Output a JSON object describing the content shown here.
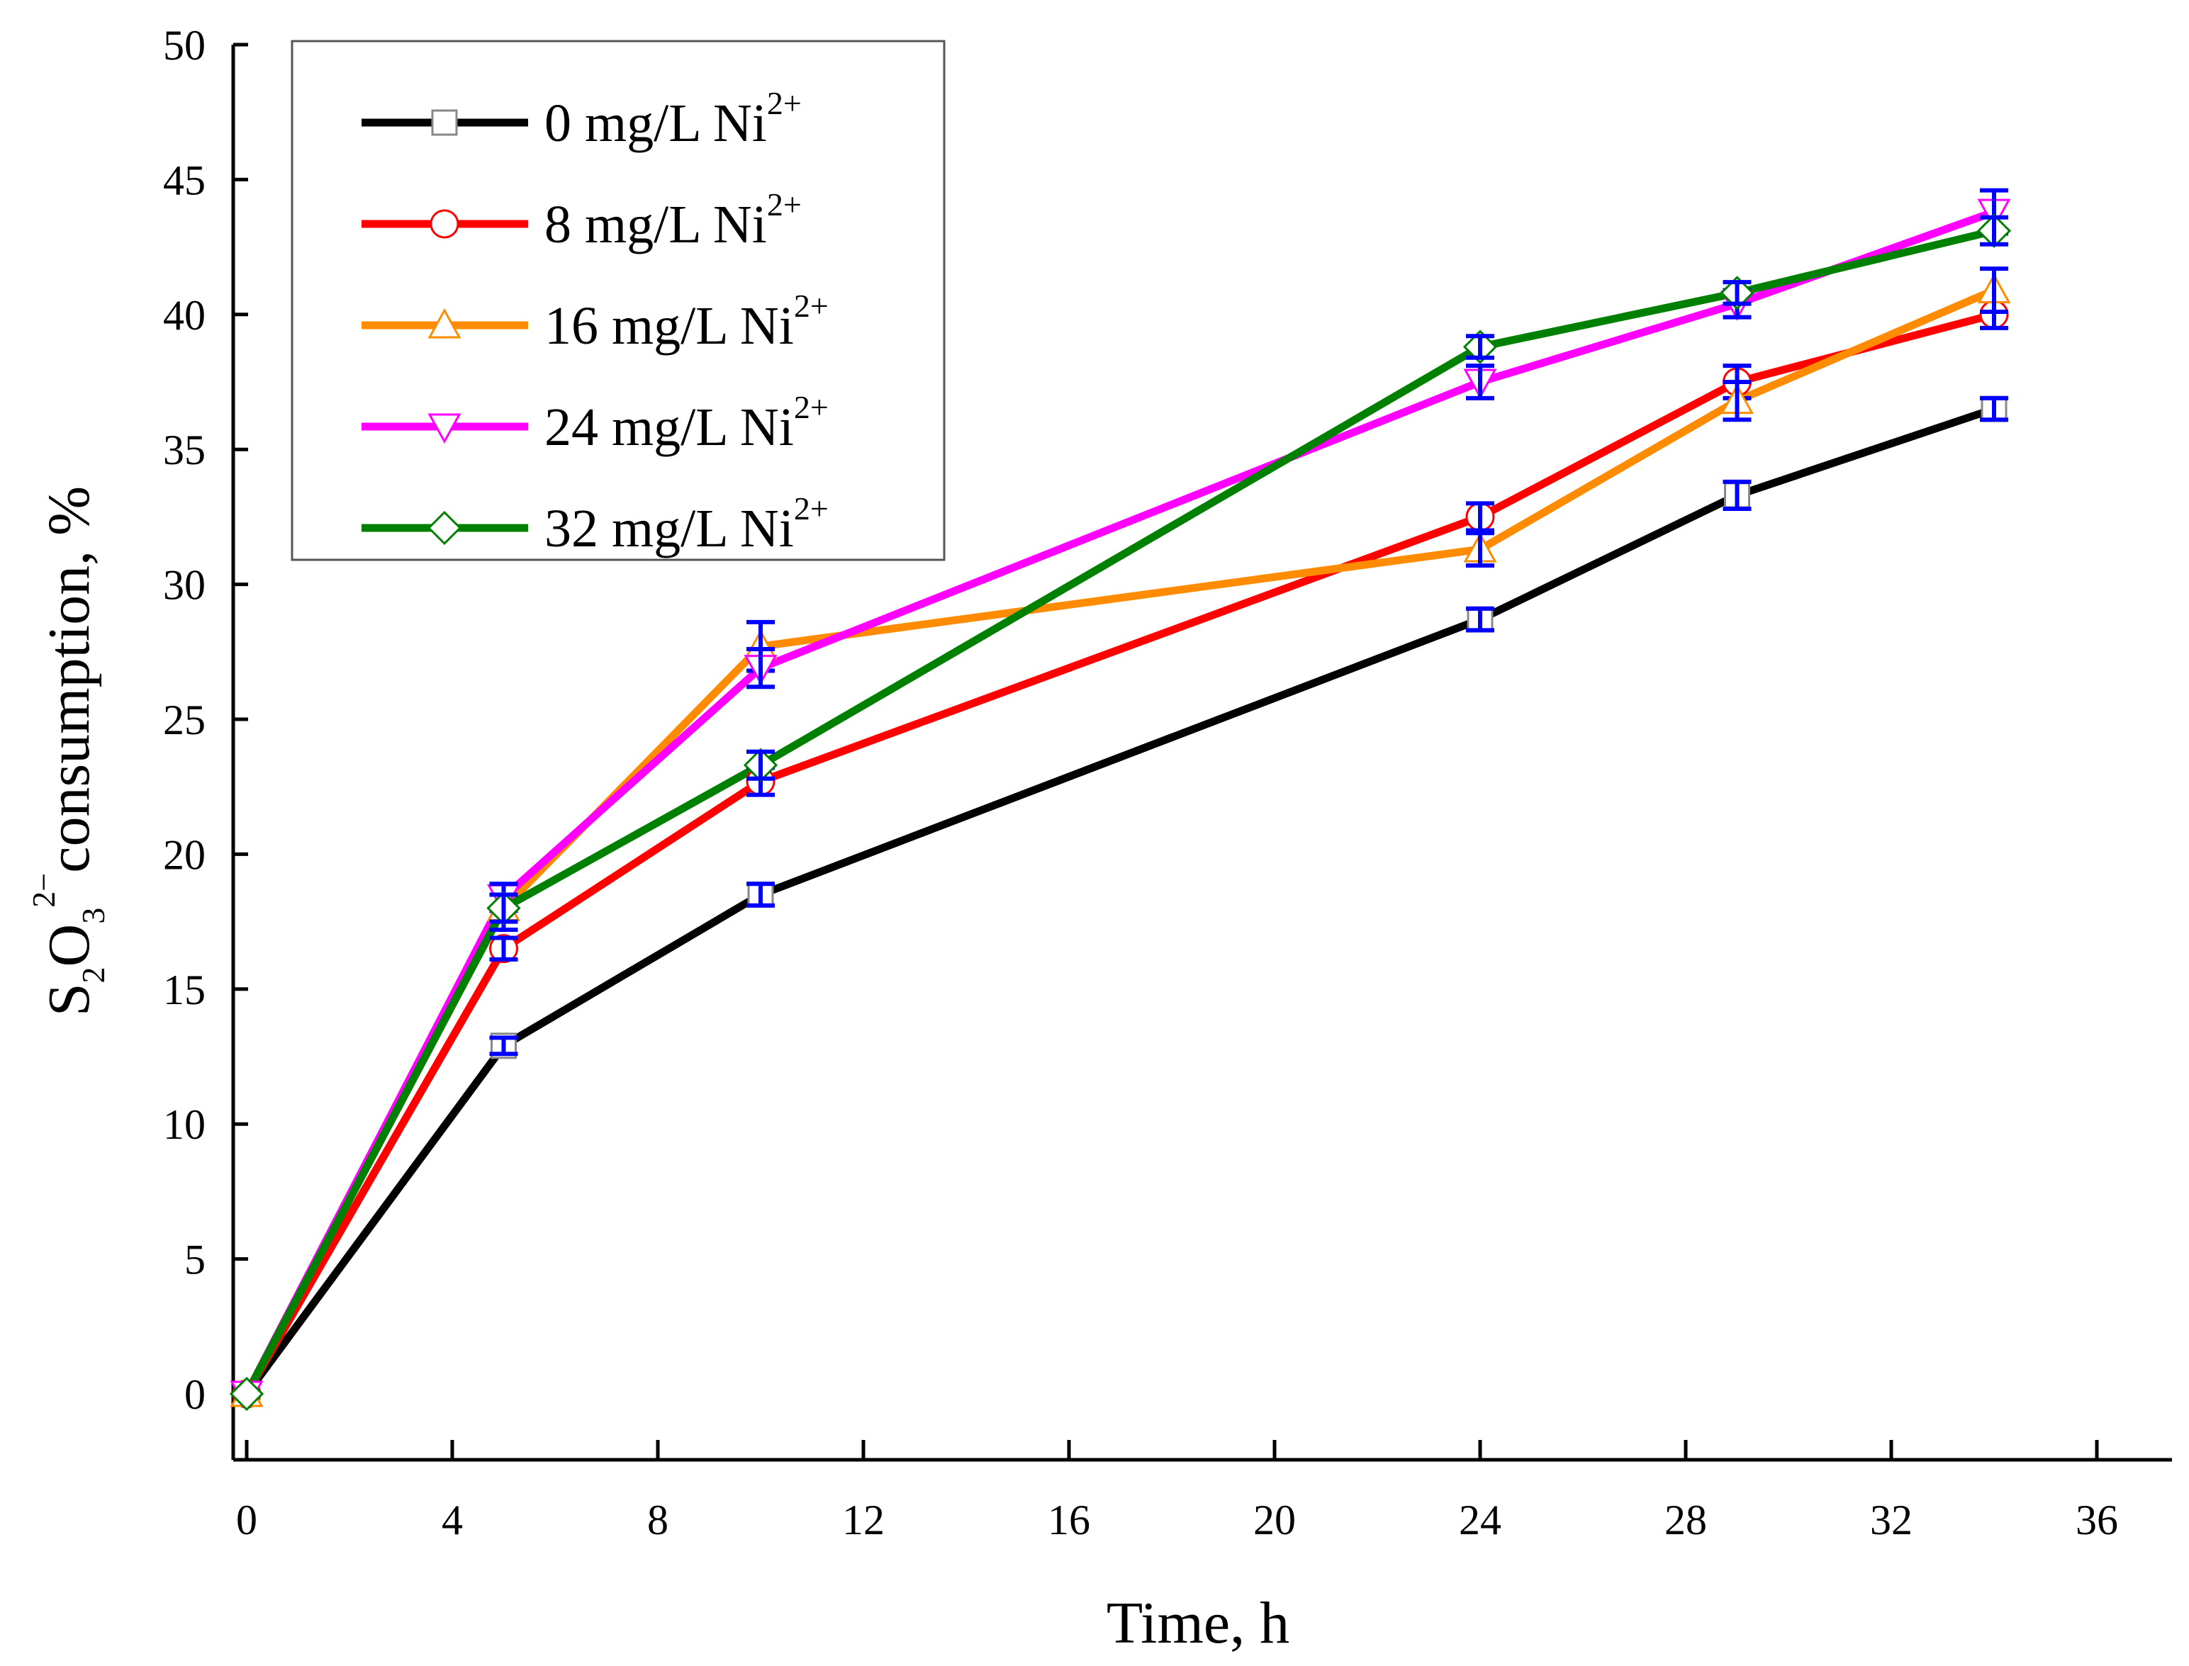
{
  "chart_data": {
    "type": "line",
    "xlabel": "Time, h",
    "ylabel": {
      "base": "S",
      "sub1": "2",
      "mid": "O",
      "sub2": "3",
      "sup": "2−",
      "text": "consumption, %"
    },
    "xlim": [
      0,
      36
    ],
    "ylim": [
      0,
      50
    ],
    "xticks": [
      0,
      4,
      8,
      12,
      16,
      20,
      24,
      28,
      32,
      36
    ],
    "yticks": [
      0,
      5,
      10,
      15,
      20,
      25,
      30,
      35,
      40,
      45,
      50
    ],
    "x": [
      0,
      5,
      10,
      24,
      29,
      34
    ],
    "legend_position": "top-left",
    "series": [
      {
        "name": "0 mg/L Ni",
        "name_sup": "2+",
        "color": "#000000",
        "marker": "square",
        "values": [
          0,
          12.9,
          18.5,
          28.7,
          33.3,
          36.5
        ],
        "errors": [
          0,
          0.3,
          0.4,
          0.4,
          0.5,
          0.4
        ]
      },
      {
        "name": "8 mg/L Ni",
        "name_sup": "2+",
        "color": "#ff0000",
        "marker": "circle",
        "values": [
          0,
          16.5,
          22.7,
          32.5,
          37.5,
          40.0
        ],
        "errors": [
          0,
          0.4,
          0.5,
          0.5,
          0.6,
          0.5
        ]
      },
      {
        "name": "16 mg/L Ni",
        "name_sup": "2+",
        "color": "#ff8c00",
        "marker": "triangle-up",
        "values": [
          0,
          18.0,
          27.7,
          31.3,
          36.8,
          40.9
        ],
        "errors": [
          0,
          0.8,
          0.9,
          0.6,
          0.7,
          0.8
        ]
      },
      {
        "name": "24 mg/L Ni",
        "name_sup": "2+",
        "color": "#ff00ff",
        "marker": "triangle-down",
        "values": [
          0,
          18.4,
          26.9,
          37.5,
          40.4,
          43.8
        ],
        "errors": [
          0,
          0.5,
          0.7,
          0.6,
          0.5,
          0.8
        ]
      },
      {
        "name": "32 mg/L Ni",
        "name_sup": "2+",
        "color": "#008000",
        "marker": "diamond",
        "values": [
          0,
          18.0,
          23.3,
          38.8,
          40.8,
          43.1
        ],
        "errors": [
          0,
          0.5,
          0.5,
          0.4,
          0.4,
          0.5
        ]
      }
    ],
    "error_bar_color": "#0000ff"
  }
}
